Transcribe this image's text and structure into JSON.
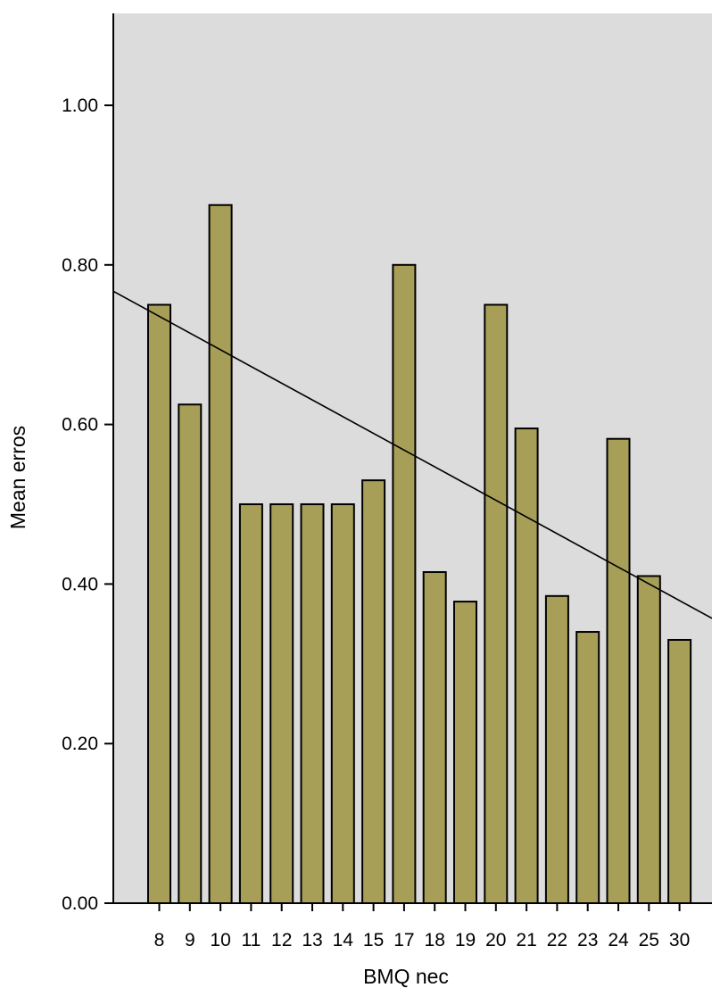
{
  "chart_data": {
    "type": "bar",
    "categories": [
      "8",
      "9",
      "10",
      "11",
      "12",
      "13",
      "14",
      "15",
      "17",
      "18",
      "19",
      "20",
      "21",
      "22",
      "23",
      "24",
      "25",
      "30"
    ],
    "values": [
      0.75,
      0.625,
      0.875,
      0.5,
      0.5,
      0.5,
      0.5,
      0.53,
      0.8,
      0.415,
      0.378,
      0.75,
      0.595,
      0.385,
      0.34,
      0.582,
      0.41,
      0.33
    ],
    "xlabel": "BMQ nec",
    "ylabel": "Mean erros",
    "ylim": [
      0,
      1.1
    ],
    "yticks": [
      0.0,
      0.2,
      0.4,
      0.6,
      0.8,
      1.0
    ],
    "ytick_labels": [
      "0.00",
      "0.20",
      "0.40",
      "0.60",
      "0.80",
      "1.00"
    ],
    "trendline": {
      "type": "linear fit",
      "y_start": 0.767,
      "y_end": 0.357
    },
    "grid": false,
    "legend": "none",
    "colors": {
      "bar": "#a79f57",
      "plot_background": "#dcdcdc",
      "page_background": "#ffffff"
    }
  }
}
